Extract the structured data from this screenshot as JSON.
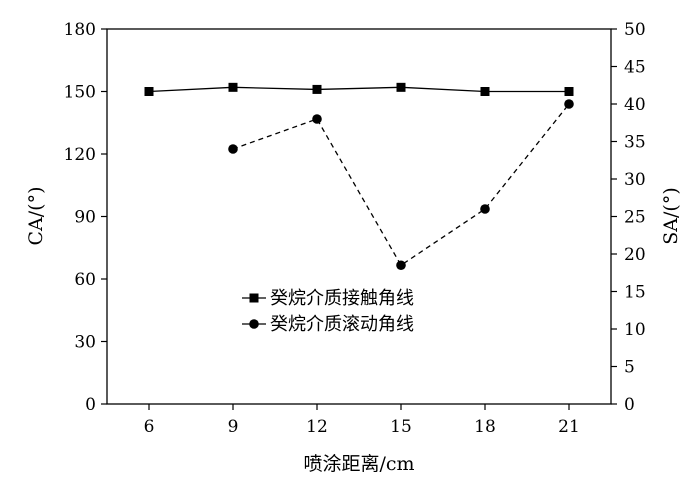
{
  "chart_data": {
    "type": "line",
    "x": [
      6,
      9,
      12,
      15,
      18,
      21
    ],
    "xlabel": "喷涂距离/cm",
    "ylabel_left": "CA/(°)",
    "ylabel_right": "SA/(°)",
    "xlim": [
      4.5,
      22.5
    ],
    "ylim_left": [
      0,
      180
    ],
    "ylim_right": [
      0,
      50
    ],
    "xticks": [
      6,
      9,
      12,
      15,
      18,
      21
    ],
    "yticks_left": [
      0,
      30,
      60,
      90,
      120,
      150,
      180
    ],
    "yticks_right": [
      0,
      5,
      10,
      15,
      20,
      25,
      30,
      35,
      40,
      45,
      50
    ],
    "grid": false,
    "legend_position": "center",
    "series": [
      {
        "name": "癸烷介质接触角线",
        "axis": "left",
        "marker": "square",
        "line_style": "solid",
        "x": [
          6,
          9,
          12,
          15,
          18,
          21
        ],
        "values": [
          150,
          152,
          151,
          152,
          150,
          150
        ]
      },
      {
        "name": "癸烷介质滚动角线",
        "axis": "right",
        "marker": "circle",
        "line_style": "dashed",
        "x": [
          9,
          12,
          15,
          18,
          21
        ],
        "values": [
          34,
          38,
          18.5,
          26,
          40
        ]
      }
    ]
  }
}
